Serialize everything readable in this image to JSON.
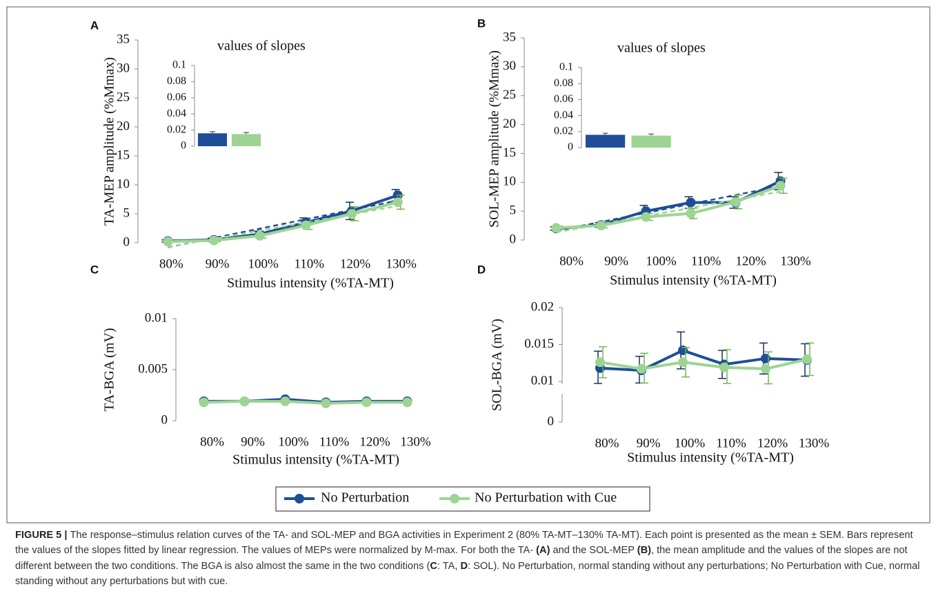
{
  "chart_data": [
    {
      "type": "line",
      "panel_label": "A",
      "ylabel": "TA-MEP amplitude (%Mmax)",
      "xlabel": "Stimulus intensity (%TA-MT)",
      "categories": [
        "80%",
        "90%",
        "100%",
        "110%",
        "120%",
        "130%"
      ],
      "ylim": [
        0,
        35
      ],
      "yticks": [
        0,
        5,
        10,
        15,
        20,
        25,
        30,
        35
      ],
      "trendline": true,
      "series": [
        {
          "name": "No Perturbation",
          "color": "#1f4e96",
          "values": [
            0.3,
            0.5,
            1.5,
            3.5,
            5.5,
            8.2
          ],
          "errors": [
            0.2,
            0.3,
            0.5,
            0.8,
            1.5,
            1.0
          ]
        },
        {
          "name": "No Perturbation with Cue",
          "color": "#9dd494",
          "values": [
            0.2,
            0.4,
            1.2,
            3.0,
            5.0,
            7.0
          ],
          "errors": [
            0.1,
            0.2,
            0.4,
            0.7,
            1.2,
            1.2
          ]
        }
      ],
      "inset": {
        "type": "bar",
        "title": "values of slopes",
        "categories": [
          null,
          null
        ],
        "values": [
          0.016,
          0.015
        ],
        "errors": [
          0.002,
          0.002
        ],
        "colors": [
          "#1f4e96",
          "#9dd494"
        ],
        "ylim": [
          0,
          0.1
        ],
        "yticks": [
          0,
          0.02,
          0.04,
          0.06,
          0.08,
          0.1
        ]
      }
    },
    {
      "type": "line",
      "panel_label": "B",
      "ylabel": "SOL-MEP amplitude (%Mmax)",
      "xlabel": "Stimulus intensity (%TA-MT)",
      "categories": [
        "80%",
        "90%",
        "100%",
        "110%",
        "120%",
        "130%"
      ],
      "ylim": [
        0,
        35
      ],
      "yticks": [
        0,
        5,
        10,
        15,
        20,
        25,
        30,
        35
      ],
      "trendline": true,
      "series": [
        {
          "name": "No Perturbation",
          "color": "#1f4e96",
          "values": [
            2.0,
            2.6,
            5.0,
            6.5,
            6.5,
            10.2
          ],
          "errors": [
            0.3,
            0.4,
            1.0,
            1.0,
            1.0,
            1.5
          ]
        },
        {
          "name": "No Perturbation with Cue",
          "color": "#9dd494",
          "values": [
            2.1,
            2.5,
            4.0,
            4.6,
            6.6,
            9.4
          ],
          "errors": [
            0.3,
            0.4,
            0.6,
            0.9,
            1.2,
            1.3
          ]
        }
      ],
      "inset": {
        "type": "bar",
        "title": "values of slopes",
        "categories": [
          null,
          null
        ],
        "values": [
          0.016,
          0.015
        ],
        "errors": [
          0.002,
          0.002
        ],
        "colors": [
          "#1f4e96",
          "#9dd494"
        ],
        "ylim": [
          0,
          0.1
        ],
        "yticks": [
          0,
          0.02,
          0.04,
          0.06,
          0.08,
          0.1
        ]
      }
    },
    {
      "type": "line",
      "panel_label": "C",
      "ylabel": "TA-BGA (mV)",
      "xlabel": "Stimulus intensity (%TA-MT)",
      "categories": [
        "80%",
        "90%",
        "100%",
        "110%",
        "120%",
        "130%"
      ],
      "ylim": [
        0,
        0.01
      ],
      "yticks": [
        0,
        0.005,
        0.01
      ],
      "series": [
        {
          "name": "No Perturbation",
          "color": "#1f4e96",
          "values": [
            0.0019,
            0.0019,
            0.0021,
            0.0018,
            0.0019,
            0.0019
          ]
        },
        {
          "name": "No Perturbation with Cue",
          "color": "#9dd494",
          "values": [
            0.0018,
            0.0019,
            0.0019,
            0.0017,
            0.0018,
            0.0018
          ]
        }
      ]
    },
    {
      "type": "line",
      "panel_label": "D",
      "ylabel": "SOL-BGA (mV)",
      "xlabel": "Stimulus intensity (%TA-MT)",
      "categories": [
        "80%",
        "90%",
        "100%",
        "110%",
        "120%",
        "130%"
      ],
      "ylim": [
        0,
        0.02
      ],
      "yticks": [
        0,
        0.01,
        0.015,
        0.02
      ],
      "y_break": true,
      "series": [
        {
          "name": "No Perturbation",
          "color": "#1f4e96",
          "values": [
            0.0118,
            0.0115,
            0.0142,
            0.0123,
            0.0131,
            0.0129
          ],
          "errors": [
            0.0023,
            0.0019,
            0.0025,
            0.0019,
            0.0021,
            0.0022
          ]
        },
        {
          "name": "No Perturbation with Cue",
          "color": "#9dd494",
          "values": [
            0.0126,
            0.0117,
            0.0126,
            0.0119,
            0.0117,
            0.013
          ],
          "errors": [
            0.0021,
            0.0021,
            0.002,
            0.0024,
            0.0023,
            0.0022
          ]
        }
      ]
    }
  ],
  "caption": [
    {
      "text": "FIGURE 5 | ",
      "bold": true
    },
    {
      "text": "The response–stimulus relation curves of the TA- and SOL-MEP and BGA activities in Experiment 2 (80% TA-MT–130% TA-MT). Each point is presented as the mean ± SEM. Bars represent the values of the slopes fitted by linear regression. The values of MEPs were normalized by M-max. For both the TA- ",
      "bold": false
    },
    {
      "text": "(A)",
      "bold": true
    },
    {
      "text": " and the SOL-MEP ",
      "bold": false
    },
    {
      "text": "(B)",
      "bold": true
    },
    {
      "text": ", the mean amplitude and the values of the slopes are not different between the two conditions. The BGA is also almost the same in the two conditions (",
      "bold": false
    },
    {
      "text": "C",
      "bold": true
    },
    {
      "text": ": TA, ",
      "bold": false
    },
    {
      "text": "D",
      "bold": true
    },
    {
      "text": ": SOL). No Perturbation, normal standing without any perturbations; No Perturbation with Cue, normal standing without any perturbations but with cue.",
      "bold": false
    }
  ]
}
